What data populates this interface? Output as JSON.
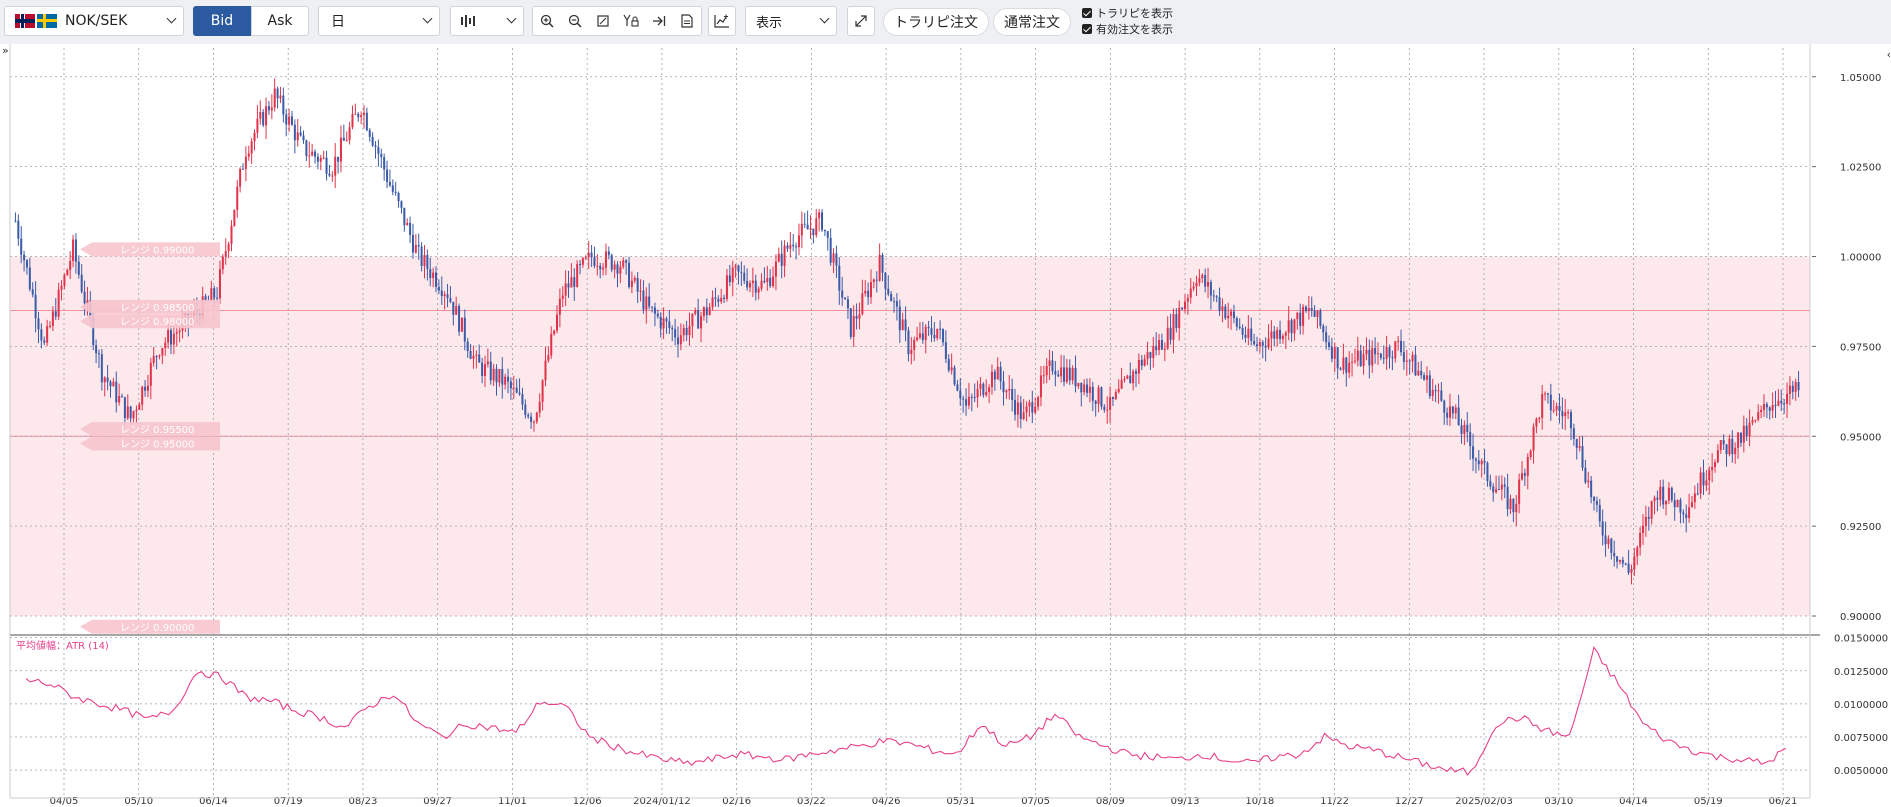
{
  "toolbar": {
    "pair": "NOK/SEK",
    "bid_label": "Bid",
    "ask_label": "Ask",
    "period": "日",
    "display_label": "表示",
    "trarip_order": "トラリピ注文",
    "normal_order": "通常注文",
    "check_trarip": "トラリピを表示",
    "check_active_orders": "有効注文を表示",
    "icons": [
      "zoom-in-icon",
      "zoom-out-icon",
      "fit-icon",
      "y-lock-icon",
      "jump-end-icon",
      "document-icon",
      "indicator-icon",
      "fullscreen-icon"
    ]
  },
  "colors": {
    "up": "#e0334a",
    "down": "#3a5ba8",
    "range_band": "#fde8ec",
    "range_line": "#f08fa0",
    "atr_line": "#e8408a",
    "tag_bg": "#f7c4cd"
  },
  "chart_data": {
    "type": "candlestick",
    "ylim": [
      0.895,
      1.058
    ],
    "y_ticks": [
      "1.05000",
      "1.02500",
      "1.00000",
      "0.97500",
      "0.95000",
      "0.92500",
      "0.90000"
    ],
    "x_labels": [
      "04/05",
      "05/10",
      "06/14",
      "07/19",
      "08/23",
      "09/27",
      "11/01",
      "12/06",
      "2024/01/12",
      "02/16",
      "03/22",
      "04/26",
      "05/31",
      "07/05",
      "08/09",
      "09/13",
      "10/18",
      "11/22",
      "12/27",
      "2025/02/03",
      "03/10",
      "04/14",
      "05/19",
      "06/21"
    ],
    "range_band": [
      0.9,
      1.0
    ],
    "range_lines": [
      0.985,
      0.95
    ],
    "range_tags": [
      {
        "label": "レンジ 0.99000",
        "value": 1.002
      },
      {
        "label": "レンジ 0.98500",
        "value": 0.986
      },
      {
        "label": "レンジ 0.98000",
        "value": 0.982
      },
      {
        "label": "レンジ 0.95500",
        "value": 0.952
      },
      {
        "label": "レンジ 0.95000",
        "value": 0.948
      },
      {
        "label": "レンジ 0.90000",
        "value": 0.897
      }
    ],
    "close_path": [
      1.01,
      0.975,
      1.002,
      0.968,
      0.955,
      0.975,
      0.982,
      0.99,
      1.03,
      1.045,
      1.03,
      1.025,
      1.042,
      1.02,
      1.0,
      0.99,
      0.97,
      0.965,
      0.955,
      0.99,
      1.0,
      0.998,
      0.985,
      0.978,
      0.985,
      0.995,
      0.992,
      1.005,
      1.01,
      0.98,
      0.998,
      0.975,
      0.98,
      0.958,
      0.968,
      0.955,
      0.97,
      0.965,
      0.958,
      0.97,
      0.978,
      0.995,
      0.985,
      0.975,
      0.98,
      0.985,
      0.97,
      0.972,
      0.975,
      0.965,
      0.955,
      0.94,
      0.93,
      0.96,
      0.955,
      0.925,
      0.912,
      0.935,
      0.93,
      0.945,
      0.95,
      0.96,
      0.963
    ],
    "atr": {
      "name": "平均値幅：ATR (14)",
      "ylim": [
        0.0038,
        0.0152
      ],
      "y_ticks": [
        "0.0150000",
        "0.0125000",
        "0.0100000",
        "0.0075000",
        "0.0050000"
      ],
      "values": [
        0.0118,
        0.0115,
        0.0105,
        0.01,
        0.0095,
        0.0088,
        0.0095,
        0.0125,
        0.012,
        0.0105,
        0.0102,
        0.0095,
        0.009,
        0.0082,
        0.0098,
        0.0108,
        0.0085,
        0.0075,
        0.0085,
        0.0082,
        0.0078,
        0.0102,
        0.0098,
        0.0075,
        0.0068,
        0.0062,
        0.0058,
        0.0055,
        0.0058,
        0.0062,
        0.006,
        0.0058,
        0.0062,
        0.0065,
        0.0068,
        0.0072,
        0.007,
        0.0065,
        0.0062,
        0.0085,
        0.0068,
        0.0075,
        0.0092,
        0.0075,
        0.0068,
        0.0062,
        0.006,
        0.0058,
        0.0062,
        0.0058,
        0.0055,
        0.006,
        0.0062,
        0.0075,
        0.0068,
        0.0065,
        0.006,
        0.0055,
        0.005,
        0.0048,
        0.0085,
        0.009,
        0.008,
        0.0075,
        0.014,
        0.0115,
        0.0085,
        0.0072,
        0.0065,
        0.006,
        0.0058,
        0.0055,
        0.0068
      ]
    }
  }
}
